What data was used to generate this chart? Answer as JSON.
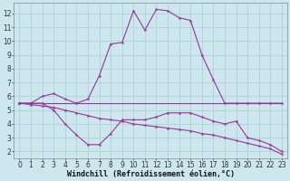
{
  "xlabel": "Windchill (Refroidissement éolien,°C)",
  "bg_color": "#cce8ee",
  "grid_color": "#aacccc",
  "line_color": "#993399",
  "x": [
    0,
    1,
    2,
    3,
    4,
    5,
    6,
    7,
    8,
    9,
    10,
    11,
    12,
    13,
    14,
    15,
    16,
    17,
    18,
    19,
    20,
    21,
    22,
    23
  ],
  "line1": [
    5.5,
    5.5,
    6.0,
    6.2,
    5.8,
    5.5,
    5.8,
    7.5,
    9.8,
    9.9,
    12.2,
    10.8,
    12.3,
    12.2,
    11.7,
    11.5,
    9.0,
    7.2,
    5.5,
    5.5,
    5.5,
    5.5,
    5.5,
    5.5
  ],
  "line2": [
    5.5,
    5.5,
    5.5,
    5.5,
    5.5,
    5.5,
    5.5,
    5.5,
    5.5,
    5.5,
    5.5,
    5.5,
    5.5,
    5.5,
    5.5,
    5.5,
    5.5,
    5.5,
    5.5,
    5.5,
    5.5,
    5.5,
    5.5,
    5.5
  ],
  "line3": [
    5.5,
    5.5,
    5.5,
    5.0,
    4.0,
    3.2,
    2.5,
    2.5,
    3.3,
    4.3,
    4.3,
    4.3,
    4.5,
    4.8,
    4.8,
    4.8,
    4.5,
    4.2,
    4.0,
    4.2,
    3.0,
    2.8,
    2.5,
    2.0
  ],
  "line4": [
    5.5,
    5.4,
    5.3,
    5.2,
    5.0,
    4.8,
    4.6,
    4.4,
    4.3,
    4.2,
    4.0,
    3.9,
    3.8,
    3.7,
    3.6,
    3.5,
    3.3,
    3.2,
    3.0,
    2.8,
    2.6,
    2.4,
    2.2,
    1.8
  ],
  "ylim": [
    1.5,
    12.8
  ],
  "xlim": [
    -0.5,
    23.5
  ],
  "yticks": [
    2,
    3,
    4,
    5,
    6,
    7,
    8,
    9,
    10,
    11,
    12
  ],
  "xticks": [
    0,
    1,
    2,
    3,
    4,
    5,
    6,
    7,
    8,
    9,
    10,
    11,
    12,
    13,
    14,
    15,
    16,
    17,
    18,
    19,
    20,
    21,
    22,
    23
  ],
  "font_size": 5.5,
  "marker": "*",
  "marker_size": 3,
  "line_width": 0.8
}
